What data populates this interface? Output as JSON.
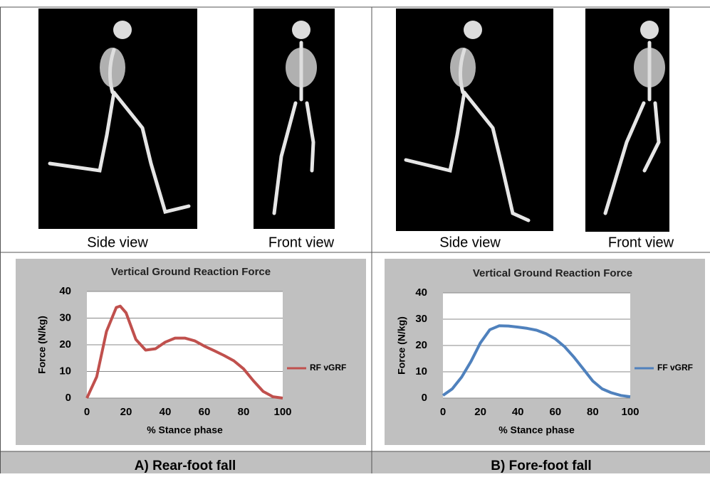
{
  "views": [
    "Side view",
    "Front view",
    "Side view",
    "Front view"
  ],
  "captions": [
    "A)  Rear-foot fall",
    "B)  Fore-foot fall"
  ],
  "chart_data": [
    {
      "type": "line",
      "title": "Vertical Ground Reaction Force",
      "x_label": "% Stance phase",
      "y_label": "Force (N/kg)",
      "x": [
        0,
        5,
        10,
        15,
        17,
        20,
        25,
        30,
        35,
        40,
        45,
        50,
        55,
        60,
        65,
        70,
        75,
        80,
        85,
        90,
        95,
        100
      ],
      "series": [
        {
          "name": "RF vGRF",
          "color": "#c0504d",
          "values": [
            0,
            8,
            25,
            34,
            34.5,
            32,
            22,
            18,
            18.5,
            21,
            22.5,
            22.5,
            21.5,
            19.5,
            17.8,
            16,
            14,
            11,
            6.5,
            2.5,
            0.5,
            0
          ]
        }
      ],
      "xlim": [
        0,
        100
      ],
      "xticks": [
        0,
        20,
        40,
        60,
        80,
        100
      ],
      "ylim": [
        0,
        40
      ],
      "yticks": [
        0,
        10,
        20,
        30,
        40
      ],
      "grid": true,
      "legend": "right"
    },
    {
      "type": "line",
      "title": "Vertical Ground Reaction Force",
      "x_label": "% Stance phase",
      "y_label": "Force (N/kg)",
      "x": [
        0,
        5,
        10,
        15,
        20,
        25,
        30,
        35,
        40,
        45,
        50,
        55,
        60,
        65,
        70,
        75,
        80,
        85,
        90,
        95,
        100
      ],
      "series": [
        {
          "name": "FF vGRF",
          "color": "#4f81bd",
          "values": [
            1,
            3.5,
            8,
            14,
            21,
            26,
            27.5,
            27.4,
            27,
            26.5,
            25.8,
            24.5,
            22.5,
            19.5,
            15.5,
            11,
            6.5,
            3.5,
            2,
            1,
            0.5
          ]
        }
      ],
      "xlim": [
        0,
        100
      ],
      "xticks": [
        0,
        20,
        40,
        60,
        80,
        100
      ],
      "ylim": [
        0,
        40
      ],
      "yticks": [
        0,
        10,
        20,
        30,
        40
      ],
      "grid": true,
      "legend": "right"
    }
  ]
}
